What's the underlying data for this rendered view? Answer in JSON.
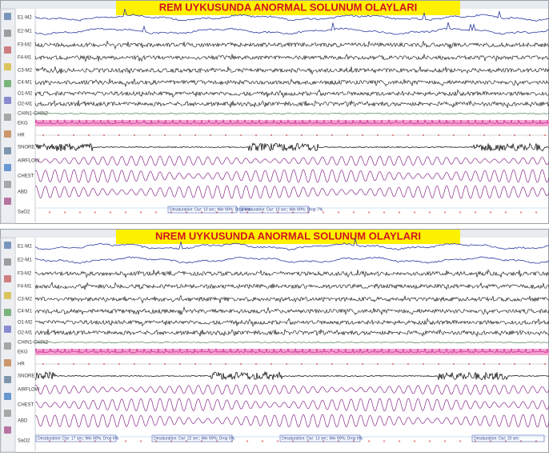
{
  "panels": [
    {
      "title": "REM UYKUSUNDA ANORMAL SOLUNUM OLAYLARI",
      "channels": [
        "E1-M2",
        "E2-M1",
        "F3-M2",
        "F4-M1",
        "C3-M2",
        "C4-M1",
        "O1-M2",
        "O2-M1",
        "CHIN1-CHIN2",
        "EKG",
        "HR",
        "SNORE",
        "AIRFLOW",
        "CHEST",
        "ABD",
        "SaO2"
      ],
      "events": [
        "Desaturation: Dur: 10 sec; Min 90%; Drop 6%",
        "Desaturation: Dur: 10 sec; Min 90%; Drop 7%"
      ]
    },
    {
      "title": "NREM UYKUSUNDA ANORMAL SOLUNUM OLAYLARI",
      "channels": [
        "E1-M2",
        "E2-M1",
        "F3-M2",
        "F4-M1",
        "C3-M2",
        "C4-M1",
        "O1-M2",
        "O2-M1",
        "CHIN1-CHIN2",
        "EKG",
        "HR",
        "SNORE",
        "AIRFLOW",
        "CHEST",
        "ABD",
        "SaO2"
      ],
      "events": [
        "Desaturation: Dur: 17 sec; Min 90%; Drop 6%",
        "Desaturation: Dur: 22 sec; Min 90%; Drop 5%",
        "Desaturation: Dur: 13 sec; Min 90%; Drop 6%",
        "Desaturation: Dur: 20 sec"
      ]
    }
  ]
}
